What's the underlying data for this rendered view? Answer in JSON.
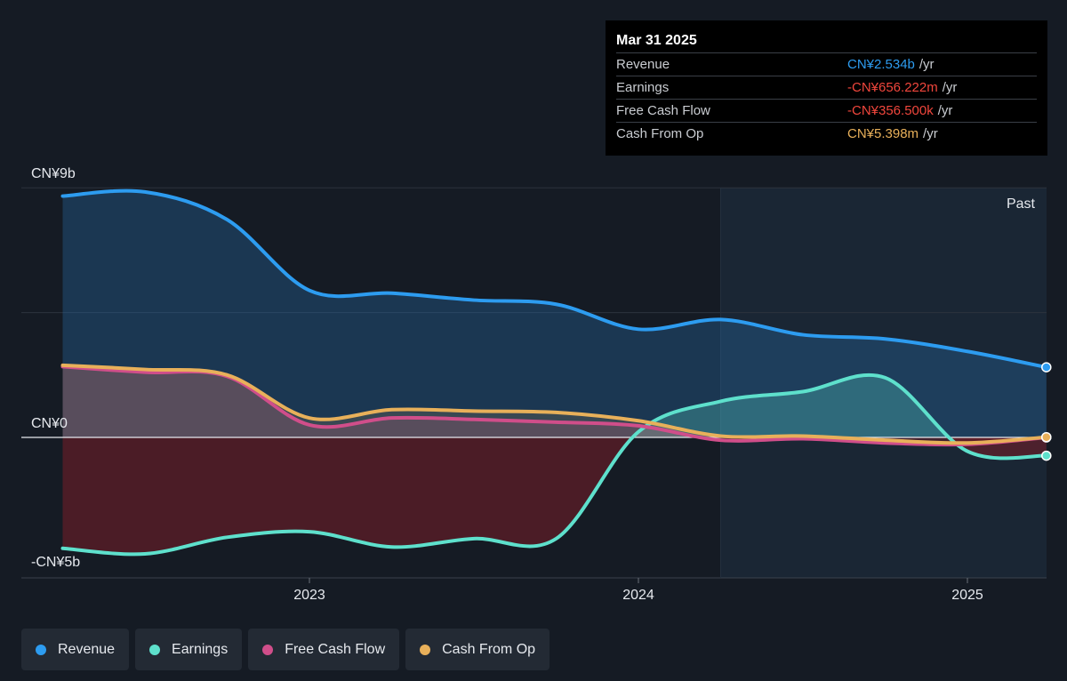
{
  "tooltip": {
    "date": "Mar 31 2025",
    "rows": [
      {
        "label": "Revenue",
        "value": "CN¥2.534b",
        "unit": "/yr",
        "color": "#2d9cf0"
      },
      {
        "label": "Earnings",
        "value": "-CN¥656.222m",
        "unit": "/yr",
        "color": "#f0463c"
      },
      {
        "label": "Free Cash Flow",
        "value": "-CN¥356.500k",
        "unit": "/yr",
        "color": "#f0463c"
      },
      {
        "label": "Cash From Op",
        "value": "CN¥5.398m",
        "unit": "/yr",
        "color": "#e8b05a"
      }
    ]
  },
  "chart_data": {
    "type": "area",
    "title": "",
    "y_ticks": [
      "CN¥9b",
      "CN¥0",
      "-CN¥5b"
    ],
    "x_ticks": [
      {
        "label": "2023",
        "x": 2023.0
      },
      {
        "label": "2024",
        "x": 2024.0
      },
      {
        "label": "2025",
        "x": 2025.0
      }
    ],
    "past_label": "Past",
    "past_start": 2024.25,
    "xlim": [
      2022.12,
      2025.24
    ],
    "ylim": [
      -5.0,
      9.0
    ],
    "unit": "CN¥ billions",
    "series": [
      {
        "name": "Revenue",
        "color": "#2d9cf0",
        "points": [
          [
            2022.25,
            8.7
          ],
          [
            2022.5,
            8.85
          ],
          [
            2022.75,
            7.85
          ],
          [
            2023.0,
            5.3
          ],
          [
            2023.25,
            5.2
          ],
          [
            2023.5,
            4.95
          ],
          [
            2023.75,
            4.8
          ],
          [
            2024.0,
            3.9
          ],
          [
            2024.25,
            4.25
          ],
          [
            2024.5,
            3.7
          ],
          [
            2024.75,
            3.55
          ],
          [
            2025.0,
            3.1
          ],
          [
            2025.24,
            2.53
          ]
        ]
      },
      {
        "name": "Earnings",
        "color": "#5ee0cc",
        "points": [
          [
            2022.25,
            -4.0
          ],
          [
            2022.5,
            -4.2
          ],
          [
            2022.75,
            -3.6
          ],
          [
            2023.0,
            -3.4
          ],
          [
            2023.25,
            -3.95
          ],
          [
            2023.5,
            -3.65
          ],
          [
            2023.75,
            -3.65
          ],
          [
            2024.0,
            0.2
          ],
          [
            2024.25,
            1.3
          ],
          [
            2024.5,
            1.65
          ],
          [
            2024.75,
            2.15
          ],
          [
            2025.0,
            -0.5
          ],
          [
            2025.24,
            -0.66
          ]
        ]
      },
      {
        "name": "Free Cash Flow",
        "color": "#d04e8a",
        "points": [
          [
            2022.25,
            2.55
          ],
          [
            2022.5,
            2.35
          ],
          [
            2022.75,
            2.2
          ],
          [
            2023.0,
            0.45
          ],
          [
            2023.25,
            0.7
          ],
          [
            2023.5,
            0.65
          ],
          [
            2023.75,
            0.55
          ],
          [
            2024.0,
            0.42
          ],
          [
            2024.25,
            -0.1
          ],
          [
            2024.5,
            -0.05
          ],
          [
            2024.75,
            -0.2
          ],
          [
            2025.0,
            -0.25
          ],
          [
            2025.24,
            0.0
          ]
        ]
      },
      {
        "name": "Cash From Op",
        "color": "#e8b05a",
        "points": [
          [
            2022.25,
            2.6
          ],
          [
            2022.5,
            2.45
          ],
          [
            2022.75,
            2.25
          ],
          [
            2023.0,
            0.7
          ],
          [
            2023.25,
            1.0
          ],
          [
            2023.5,
            0.95
          ],
          [
            2023.75,
            0.9
          ],
          [
            2024.0,
            0.6
          ],
          [
            2024.25,
            0.05
          ],
          [
            2024.5,
            0.05
          ],
          [
            2024.75,
            -0.1
          ],
          [
            2025.0,
            -0.2
          ],
          [
            2025.24,
            0.01
          ]
        ]
      }
    ],
    "legend": [
      "Revenue",
      "Earnings",
      "Free Cash Flow",
      "Cash From Op"
    ]
  }
}
